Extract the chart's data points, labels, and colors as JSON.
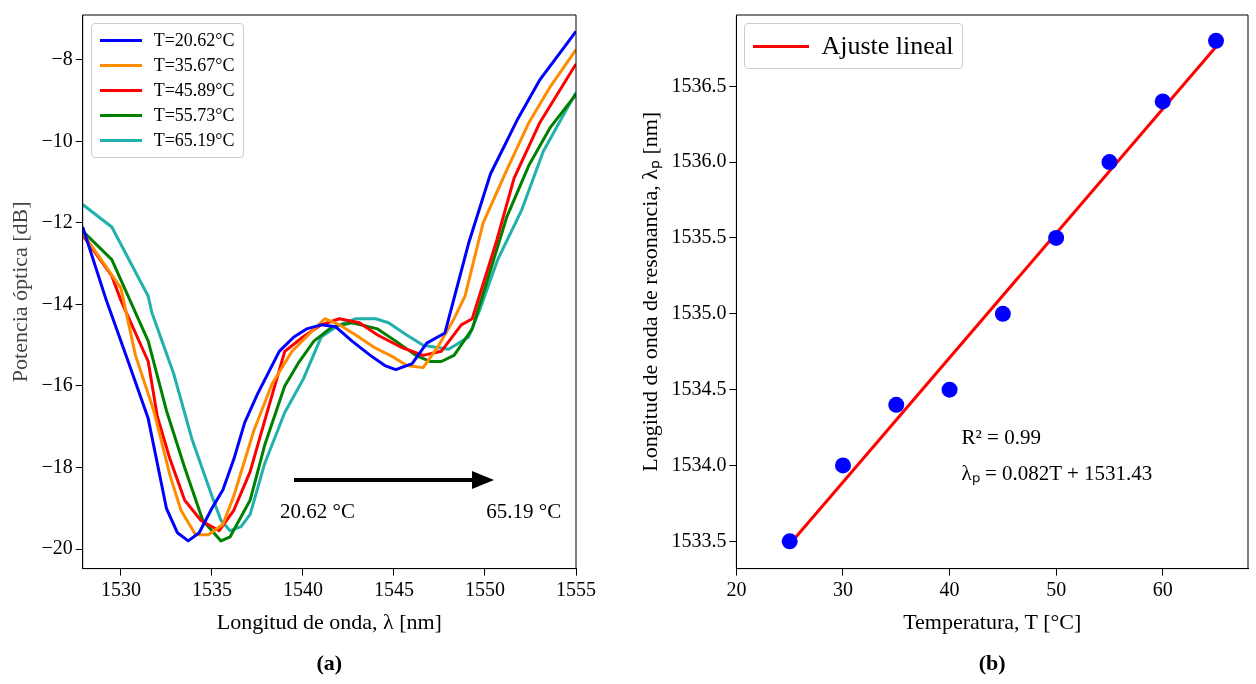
{
  "chart_data": [
    {
      "type": "line",
      "xlabel": "Longitud de onda, λ [nm]",
      "ylabel": "Potencia óptica [dB]",
      "xlim": [
        1527.9,
        1555
      ],
      "ylim": [
        -20.48,
        -6.9
      ],
      "xticks": [
        1530,
        1535,
        1540,
        1545,
        1550,
        1555
      ],
      "yticks": [
        {
          "value": -20,
          "label": "−20"
        },
        {
          "value": -18,
          "label": "−18"
        },
        {
          "value": -16,
          "label": "−16"
        },
        {
          "value": -14,
          "label": "−14"
        },
        {
          "value": -12,
          "label": "−12"
        },
        {
          "value": -10,
          "label": "−10"
        },
        {
          "value": -8,
          "label": "−8"
        }
      ],
      "grid": false,
      "legend": "top left",
      "marker": "none",
      "line_style": "solid",
      "annotations": [
        "20.62 °C",
        "65.19 °C",
        "(a)"
      ],
      "series": [
        {
          "name": "T=20.62°C",
          "color": "#0000ff",
          "x": [
            1527.9,
            1529.2,
            1530.4,
            1531.5,
            1532.5,
            1533.1,
            1533.7,
            1534.3,
            1535.0,
            1535.6,
            1536.2,
            1536.8,
            1537.5,
            1538.7,
            1539.5,
            1540.2,
            1541.0,
            1541.8,
            1542.7,
            1543.7,
            1544.5,
            1545.1,
            1546.0,
            1546.8,
            1547.8,
            1549.1,
            1550.3,
            1551.8,
            1553.0,
            1554.5,
            1555.0
          ],
          "values": [
            -12.1,
            -13.9,
            -15.4,
            -16.8,
            -19.0,
            -19.6,
            -19.8,
            -19.6,
            -19.0,
            -18.55,
            -17.8,
            -16.9,
            -16.2,
            -15.15,
            -14.8,
            -14.6,
            -14.5,
            -14.55,
            -14.9,
            -15.25,
            -15.5,
            -15.6,
            -15.45,
            -14.95,
            -14.7,
            -12.5,
            -10.8,
            -9.45,
            -8.5,
            -7.6,
            -7.3
          ]
        },
        {
          "name": "T=35.67°C",
          "color": "#ff8c00",
          "x": [
            1527.9,
            1530.0,
            1530.8,
            1531.8,
            1532.7,
            1533.3,
            1534.1,
            1534.8,
            1535.6,
            1536.2,
            1537.3,
            1538.3,
            1539.4,
            1540.4,
            1541.2,
            1542.0,
            1542.9,
            1543.9,
            1545.0,
            1545.7,
            1546.6,
            1547.4,
            1548.3,
            1548.9,
            1549.9,
            1551.2,
            1552.4,
            1553.6,
            1555.0
          ],
          "values": [
            -12.25,
            -13.6,
            -15.25,
            -16.6,
            -18.2,
            -19.05,
            -19.65,
            -19.65,
            -19.4,
            -18.7,
            -17.1,
            -15.95,
            -15.15,
            -14.7,
            -14.35,
            -14.5,
            -14.75,
            -15.05,
            -15.3,
            -15.5,
            -15.55,
            -15.05,
            -14.35,
            -13.8,
            -12.0,
            -10.7,
            -9.55,
            -8.65,
            -7.75
          ]
        },
        {
          "name": "T=45.89°C",
          "color": "#ff0000",
          "x": [
            1527.9,
            1529.5,
            1530.0,
            1531.5,
            1532.0,
            1532.7,
            1533.5,
            1534.4,
            1535.4,
            1536.2,
            1537.1,
            1537.9,
            1539.0,
            1540.0,
            1541.0,
            1542.0,
            1543.1,
            1544.1,
            1545.4,
            1546.6,
            1547.6,
            1548.7,
            1549.3,
            1550.6,
            1551.6,
            1553.0,
            1555.0
          ],
          "values": [
            -12.3,
            -13.3,
            -13.9,
            -15.4,
            -16.75,
            -17.8,
            -18.8,
            -19.3,
            -19.55,
            -19.05,
            -18.1,
            -16.85,
            -15.15,
            -14.8,
            -14.5,
            -14.35,
            -14.45,
            -14.75,
            -15.05,
            -15.25,
            -15.15,
            -14.5,
            -14.35,
            -12.5,
            -10.9,
            -9.55,
            -8.1
          ]
        },
        {
          "name": "T=55.73°C",
          "color": "#008000",
          "x": [
            1527.9,
            1529.5,
            1530.5,
            1531.5,
            1532.5,
            1533.5,
            1534.5,
            1535.5,
            1536.0,
            1537.1,
            1537.9,
            1539.0,
            1539.8,
            1540.6,
            1541.6,
            1542.7,
            1544.1,
            1545.1,
            1546.2,
            1547.0,
            1547.6,
            1548.3,
            1549.3,
            1550.1,
            1551.2,
            1552.4,
            1553.6,
            1555.0
          ],
          "values": [
            -12.2,
            -12.9,
            -13.9,
            -14.9,
            -16.6,
            -18.0,
            -19.3,
            -19.8,
            -19.7,
            -18.8,
            -17.45,
            -16.0,
            -15.4,
            -14.9,
            -14.55,
            -14.45,
            -14.6,
            -14.9,
            -15.25,
            -15.4,
            -15.4,
            -15.25,
            -14.6,
            -13.45,
            -11.85,
            -10.6,
            -9.65,
            -8.85
          ]
        },
        {
          "name": "T=65.19°C",
          "color": "#20b2aa",
          "x": [
            1527.9,
            1529.5,
            1531.5,
            1531.7,
            1532.9,
            1533.9,
            1535.0,
            1535.5,
            1536.0,
            1536.6,
            1537.1,
            1537.9,
            1539.0,
            1540.0,
            1541.0,
            1542.0,
            1542.9,
            1544.0,
            1544.7,
            1545.7,
            1546.6,
            1548.0,
            1549.1,
            1549.7,
            1550.7,
            1552.0,
            1553.2,
            1555.0
          ],
          "values": [
            -11.55,
            -12.1,
            -13.8,
            -14.2,
            -15.7,
            -17.3,
            -18.7,
            -19.3,
            -19.55,
            -19.45,
            -19.15,
            -17.9,
            -16.65,
            -15.85,
            -14.8,
            -14.5,
            -14.35,
            -14.35,
            -14.45,
            -14.75,
            -15.0,
            -15.1,
            -14.8,
            -14.15,
            -12.9,
            -11.7,
            -10.25,
            -8.8
          ]
        }
      ]
    },
    {
      "type": "scatter",
      "xlabel": "Temperatura, T [°C]",
      "ylabel": "Longitud de onda de resonancia, λₚ [nm]",
      "xlim": [
        20,
        68
      ],
      "ylim": [
        1533.32,
        1536.97
      ],
      "xticks": [
        20,
        30,
        40,
        50,
        60
      ],
      "yticks": [
        1533.5,
        {
          "value": 1534,
          "label": "1534.0"
        },
        1534.5,
        {
          "value": 1535,
          "label": "1535.0"
        },
        1535.5,
        {
          "value": 1536,
          "label": "1536.0"
        },
        1536.5
      ],
      "grid": false,
      "legend": "top left",
      "annotations": [
        "R² = 0.99",
        "λₚ = 0.082T + 1531.43",
        "(b)"
      ],
      "series": [
        {
          "type": "scatter",
          "marker": "circle",
          "color": "#0000ff",
          "x": [
            25,
            30,
            35,
            40,
            45,
            50,
            55,
            60,
            65
          ],
          "values": [
            1533.5,
            1534.0,
            1534.4,
            1534.5,
            1535.0,
            1535.5,
            1536.0,
            1536.4,
            1536.8
          ]
        },
        {
          "type": "line",
          "marker": "none",
          "name": "Ajuste lineal",
          "color": "#ff0000",
          "x": [
            25,
            65
          ],
          "values": [
            1533.48,
            1536.76
          ]
        }
      ]
    }
  ]
}
